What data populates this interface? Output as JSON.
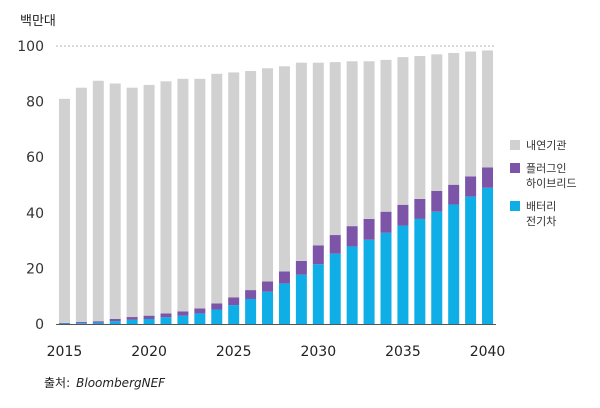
{
  "chart_data": {
    "type": "bar",
    "stacked": true,
    "unit_label": "백만대",
    "categories": [
      2015,
      2016,
      2017,
      2018,
      2019,
      2020,
      2021,
      2022,
      2023,
      2024,
      2025,
      2026,
      2027,
      2028,
      2029,
      2030,
      2031,
      2032,
      2033,
      2034,
      2035,
      2036,
      2037,
      2038,
      2039,
      2040
    ],
    "series": [
      {
        "name": "배터리 전기차",
        "color": "#10aee6",
        "values": [
          0.2,
          0.3,
          0.5,
          1,
          1.5,
          1.8,
          2.4,
          3,
          3.8,
          5.2,
          6.8,
          9,
          11.6,
          14.6,
          17.7,
          21.5,
          25.3,
          27.9,
          30.3,
          32.8,
          35.4,
          37.8,
          40.4,
          43,
          45.8,
          49
        ]
      },
      {
        "name": "플러그인 하이브리드",
        "color": "#7c55a8",
        "values": [
          0.2,
          0.4,
          0.5,
          0.8,
          1,
          1.2,
          1.4,
          1.5,
          1.8,
          2.2,
          2.8,
          3.2,
          3.7,
          4.3,
          5,
          6.8,
          6.7,
          7.3,
          7.5,
          7.6,
          7.5,
          7.2,
          7.5,
          7.1,
          7.3,
          7.3
        ]
      },
      {
        "name": "내연기관",
        "color": "#d1d1d1",
        "values": [
          80.6,
          84.3,
          86.5,
          84.7,
          82.5,
          82.9,
          83.5,
          83.7,
          82.6,
          82.6,
          80.9,
          78.8,
          76.6,
          73.8,
          71.3,
          65.7,
          62.2,
          59.3,
          56.7,
          54.6,
          53.1,
          51.4,
          49.1,
          47.4,
          44.9,
          42.1
        ]
      }
    ],
    "totals": [
      81,
      85,
      87.5,
      86.5,
      85,
      86,
      87.3,
      88.2,
      88.2,
      90,
      90.5,
      91,
      92,
      92.7,
      94,
      94,
      94.2,
      94.5,
      94.5,
      95,
      96,
      96.4,
      97,
      97.5,
      98,
      98.4
    ],
    "ylim": [
      0,
      100
    ],
    "yticks": [
      0,
      20,
      40,
      60,
      80,
      100
    ],
    "xticks": [
      2015,
      2020,
      2025,
      2030,
      2035,
      2040
    ],
    "grid": "dashed at 100 only",
    "legend_position": "right"
  },
  "legend": [
    {
      "label": "내연기관",
      "color": "#d1d1d1"
    },
    {
      "label": "플러그인\n하이브리드",
      "color": "#7c55a8"
    },
    {
      "label": "배터리\n전기차",
      "color": "#10aee6"
    }
  ],
  "source": {
    "prefix": "출처:",
    "name": "BloombergNEF"
  }
}
